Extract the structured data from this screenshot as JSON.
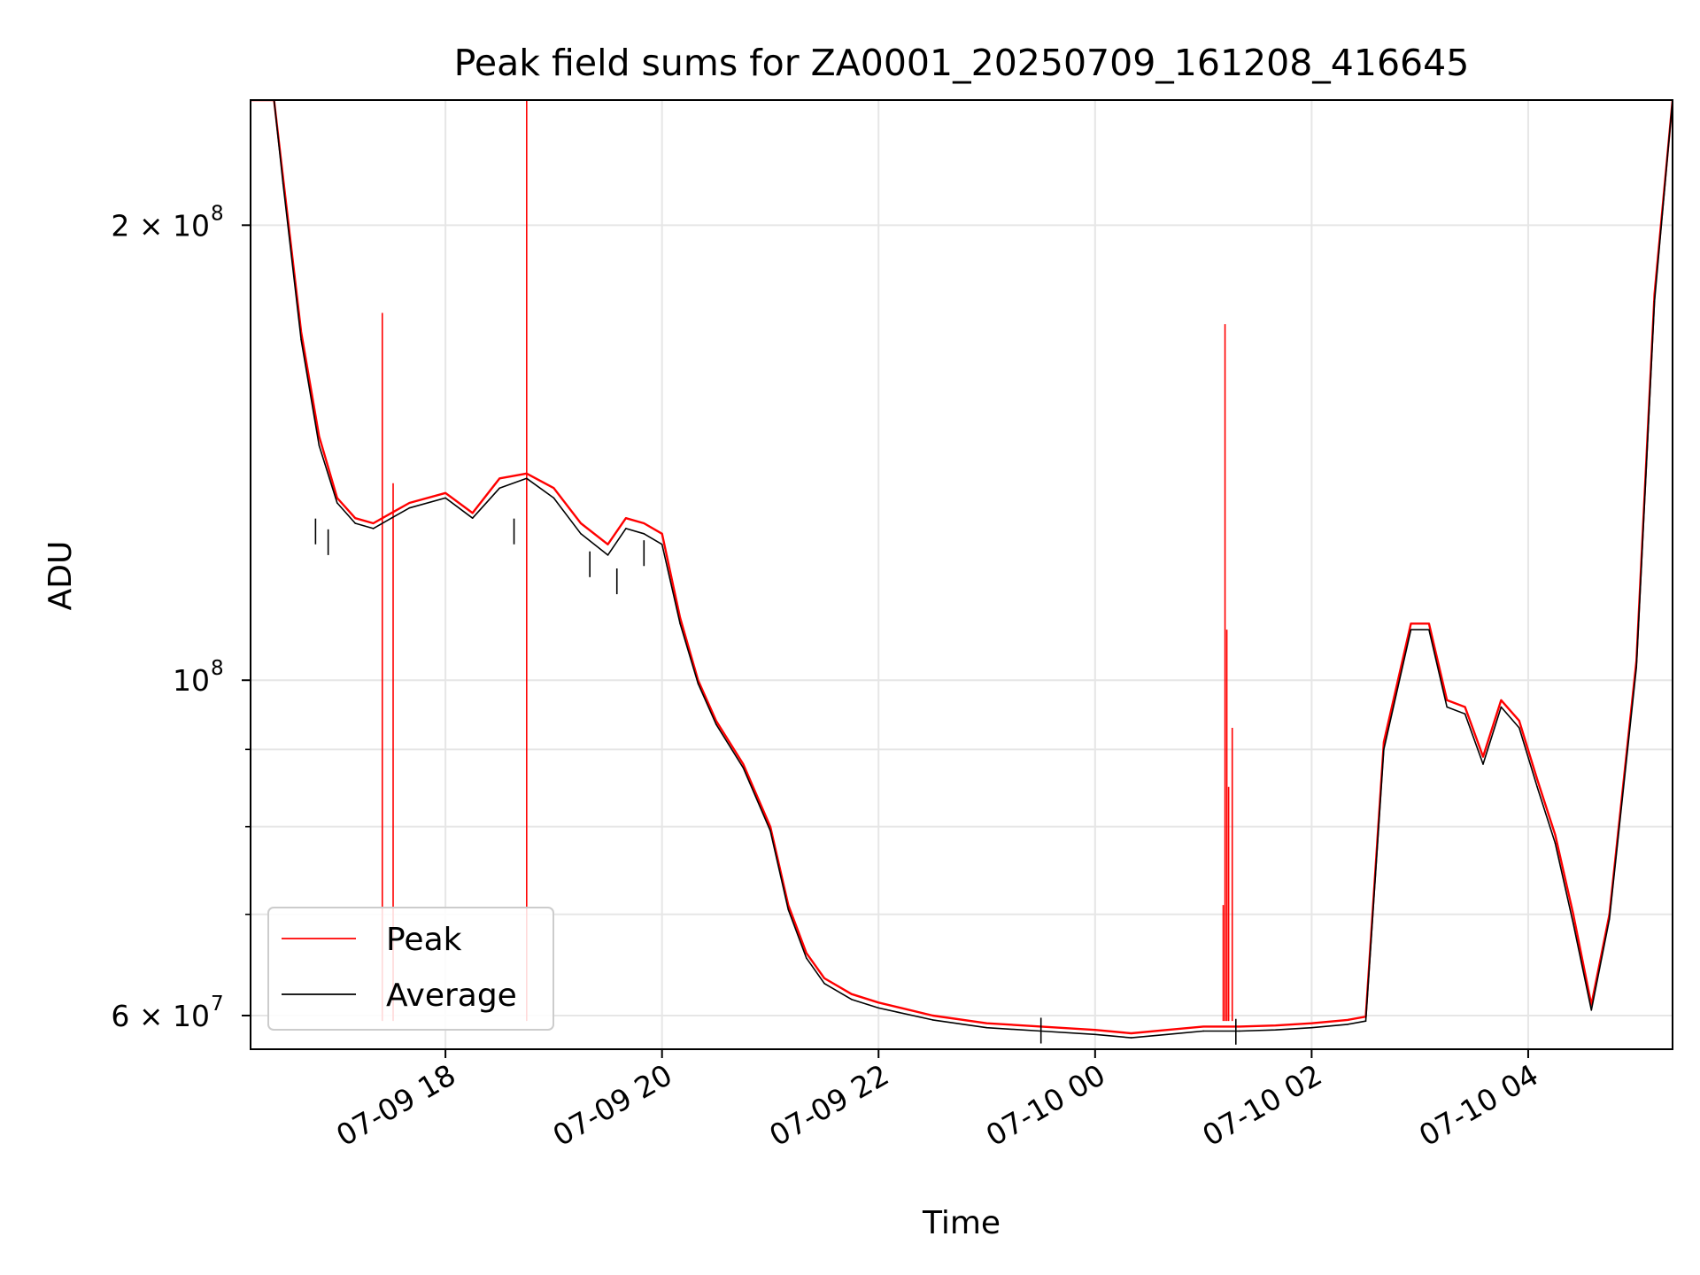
{
  "chart_data": {
    "type": "line",
    "title": "Peak field sums for ZA0001_20250709_161208_416645",
    "xlabel": "Time",
    "ylabel": "ADU",
    "yscale": "log",
    "xlim": [
      "2025-07-09 16:12",
      "2025-07-10 05:20"
    ],
    "ylim": [
      57000000,
      242000000
    ],
    "grid": true,
    "legend_position": "lower-left",
    "x_ticks": [
      "2025-07-09 18:00",
      "2025-07-09 20:00",
      "2025-07-09 22:00",
      "2025-07-10 00:00",
      "2025-07-10 02:00",
      "2025-07-10 04:00"
    ],
    "x_tick_labels": [
      "07-09 18",
      "07-09 20",
      "07-09 22",
      "07-10 00",
      "07-10 02",
      "07-10 04"
    ],
    "y_major_ticks": [
      60000000,
      100000000,
      200000000
    ],
    "y_major_tick_labels": [
      {
        "base": "6 × 10",
        "exp": "7"
      },
      {
        "base": "10",
        "exp": "8"
      },
      {
        "base": "2 × 10",
        "exp": "8"
      }
    ],
    "y_minor_ticks": [
      70000000,
      80000000,
      90000000
    ],
    "series": [
      {
        "name": "Peak",
        "color": "#ff0000",
        "x": [
          "2025-07-09 16:12",
          "2025-07-09 16:25",
          "2025-07-09 16:30",
          "2025-07-09 16:40",
          "2025-07-09 16:50",
          "2025-07-09 17:00",
          "2025-07-09 17:10",
          "2025-07-09 17:20",
          "2025-07-09 17:30",
          "2025-07-09 17:40",
          "2025-07-09 18:00",
          "2025-07-09 18:15",
          "2025-07-09 18:30",
          "2025-07-09 18:45",
          "2025-07-09 19:00",
          "2025-07-09 19:15",
          "2025-07-09 19:30",
          "2025-07-09 19:40",
          "2025-07-09 19:50",
          "2025-07-09 20:00",
          "2025-07-09 20:10",
          "2025-07-09 20:20",
          "2025-07-09 20:30",
          "2025-07-09 20:45",
          "2025-07-09 21:00",
          "2025-07-09 21:10",
          "2025-07-09 21:20",
          "2025-07-09 21:30",
          "2025-07-09 21:45",
          "2025-07-09 22:00",
          "2025-07-09 22:30",
          "2025-07-09 23:00",
          "2025-07-09 23:30",
          "2025-07-10 00:00",
          "2025-07-10 00:20",
          "2025-07-10 00:40",
          "2025-07-10 01:00",
          "2025-07-10 01:20",
          "2025-07-10 01:40",
          "2025-07-10 02:00",
          "2025-07-10 02:20",
          "2025-07-10 02:30",
          "2025-07-10 02:40",
          "2025-07-10 02:55",
          "2025-07-10 03:05",
          "2025-07-10 03:15",
          "2025-07-10 03:25",
          "2025-07-10 03:35",
          "2025-07-10 03:45",
          "2025-07-10 03:55",
          "2025-07-10 04:05",
          "2025-07-10 04:15",
          "2025-07-10 04:25",
          "2025-07-10 04:35",
          "2025-07-10 04:45",
          "2025-07-10 05:00",
          "2025-07-10 05:10",
          "2025-07-10 05:20"
        ],
        "y": [
          242000000,
          242000000,
          215000000,
          170000000,
          145000000,
          132000000,
          128000000,
          127000000,
          129000000,
          131000000,
          133000000,
          129000000,
          136000000,
          137000000,
          134000000,
          127000000,
          123000000,
          128000000,
          127000000,
          125000000,
          110000000,
          100000000,
          94000000,
          88000000,
          80000000,
          71000000,
          66000000,
          63500000,
          62000000,
          61200000,
          60000000,
          59300000,
          59000000,
          58700000,
          58400000,
          58700000,
          59000000,
          59000000,
          59100000,
          59300000,
          59600000,
          59900000,
          91000000,
          109000000,
          109000000,
          97000000,
          96000000,
          89000000,
          97000000,
          94000000,
          86000000,
          79000000,
          70000000,
          61000000,
          70000000,
          103000000,
          180000000,
          242000000
        ],
        "spikes": [
          {
            "x": "2025-07-09 17:25",
            "y": 175000000
          },
          {
            "x": "2025-07-09 17:31",
            "y": 135000000
          },
          {
            "x": "2025-07-09 18:45",
            "y": 242000000
          },
          {
            "x": "2025-07-10 01:12",
            "y": 172000000
          },
          {
            "x": "2025-07-10 01:13",
            "y": 108000000
          },
          {
            "x": "2025-07-10 01:14",
            "y": 85000000
          },
          {
            "x": "2025-07-10 01:16",
            "y": 93000000
          },
          {
            "x": "2025-07-10 01:11",
            "y": 71000000
          }
        ]
      },
      {
        "name": "Average",
        "color": "#000000",
        "x": [
          "2025-07-09 16:12",
          "2025-07-09 16:25",
          "2025-07-09 16:30",
          "2025-07-09 16:40",
          "2025-07-09 16:50",
          "2025-07-09 17:00",
          "2025-07-09 17:10",
          "2025-07-09 17:20",
          "2025-07-09 17:30",
          "2025-07-09 17:40",
          "2025-07-09 18:00",
          "2025-07-09 18:15",
          "2025-07-09 18:30",
          "2025-07-09 18:45",
          "2025-07-09 19:00",
          "2025-07-09 19:15",
          "2025-07-09 19:30",
          "2025-07-09 19:40",
          "2025-07-09 19:50",
          "2025-07-09 20:00",
          "2025-07-09 20:10",
          "2025-07-09 20:20",
          "2025-07-09 20:30",
          "2025-07-09 20:45",
          "2025-07-09 21:00",
          "2025-07-09 21:10",
          "2025-07-09 21:20",
          "2025-07-09 21:30",
          "2025-07-09 21:45",
          "2025-07-09 22:00",
          "2025-07-09 22:30",
          "2025-07-09 23:00",
          "2025-07-09 23:30",
          "2025-07-10 00:00",
          "2025-07-10 00:20",
          "2025-07-10 00:40",
          "2025-07-10 01:00",
          "2025-07-10 01:20",
          "2025-07-10 01:40",
          "2025-07-10 02:00",
          "2025-07-10 02:20",
          "2025-07-10 02:30",
          "2025-07-10 02:40",
          "2025-07-10 02:55",
          "2025-07-10 03:05",
          "2025-07-10 03:15",
          "2025-07-10 03:25",
          "2025-07-10 03:35",
          "2025-07-10 03:45",
          "2025-07-10 03:55",
          "2025-07-10 04:05",
          "2025-07-10 04:15",
          "2025-07-10 04:25",
          "2025-07-10 04:35",
          "2025-07-10 04:45",
          "2025-07-10 05:00",
          "2025-07-10 05:10",
          "2025-07-10 05:20"
        ],
        "y": [
          242000000,
          242000000,
          213000000,
          168000000,
          143000000,
          131000000,
          127000000,
          126000000,
          128000000,
          130000000,
          132000000,
          128000000,
          134000000,
          136000000,
          132000000,
          125000000,
          121000000,
          126000000,
          125000000,
          123000000,
          109000000,
          99500000,
          93500000,
          87500000,
          79500000,
          70500000,
          65500000,
          63000000,
          61500000,
          60700000,
          59600000,
          58900000,
          58600000,
          58300000,
          58000000,
          58300000,
          58600000,
          58600000,
          58700000,
          58900000,
          59200000,
          59500000,
          90000000,
          108000000,
          108000000,
          96000000,
          95000000,
          88000000,
          96000000,
          93000000,
          85000000,
          78000000,
          69000000,
          60500000,
          69500000,
          102000000,
          178000000,
          242000000
        ],
        "dips": [
          {
            "x": "2025-07-09 16:48",
            "y": 123000000
          },
          {
            "x": "2025-07-09 16:55",
            "y": 121000000
          },
          {
            "x": "2025-07-09 18:38",
            "y": 123000000
          },
          {
            "x": "2025-07-09 19:20",
            "y": 117000000
          },
          {
            "x": "2025-07-09 19:35",
            "y": 114000000
          },
          {
            "x": "2025-07-09 19:50",
            "y": 119000000
          },
          {
            "x": "2025-07-09 23:30",
            "y": 57500000
          },
          {
            "x": "2025-07-10 01:18",
            "y": 57400000
          }
        ]
      }
    ]
  }
}
